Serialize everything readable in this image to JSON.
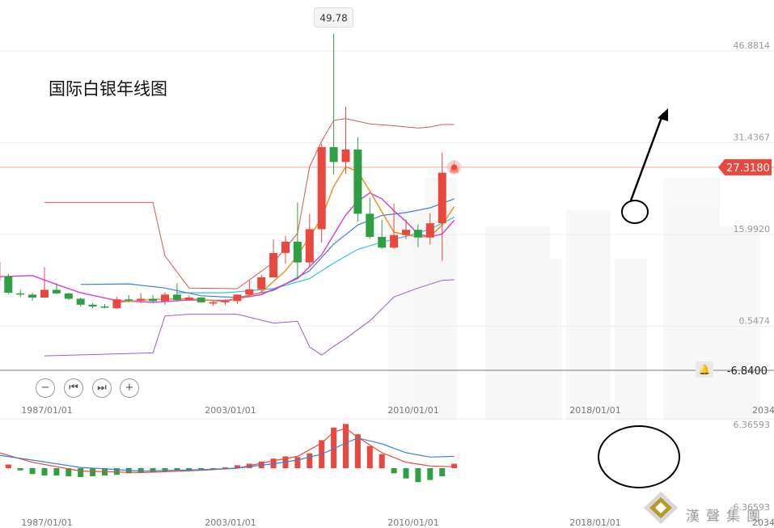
{
  "title": "国际白银年线图",
  "controls": {
    "zoom_out": "−",
    "prev": "⏮",
    "next": "⏭",
    "zoom_in": "+",
    "bell_icon": "bell-icon"
  },
  "brand": {
    "text": "漢聲集團",
    "color": "#8a8a8a"
  },
  "colors": {
    "up": "#e8483e",
    "down": "#2ea043",
    "ma_fast": "#f08a1c",
    "ma_mid": "#d63ad6",
    "ma_slow": "#3b82d6",
    "ma_long": "#30c7d6",
    "band_upper": "#d9584a",
    "band_lower": "#9b59d6",
    "macd_dif": "#e8483e",
    "macd_dea": "#3b82d6",
    "price_tag_bg": "#e8483e",
    "annotation": "#000000"
  },
  "chart_data": {
    "type": "candlestick",
    "price_axis": {
      "ticks": [
        "46.8814",
        "31.4367",
        "15.9920",
        "0.5474",
        "-6.8400"
      ],
      "ylim": [
        -6.84,
        50.5
      ]
    },
    "x_axis": {
      "tick_labels": [
        "1987/01/01",
        "2003/01/01",
        "2010/01/01",
        "2018/01/01",
        "2034"
      ]
    },
    "current_price": "27.3180",
    "max_label": "49.78",
    "candles": [
      {
        "year": 1983,
        "o": 8.2,
        "h": 14.8,
        "l": 8.0,
        "c": 11.4
      },
      {
        "year": 1984,
        "o": 9.0,
        "h": 9.4,
        "l": 6.0,
        "c": 6.2
      },
      {
        "year": 1985,
        "o": 6.1,
        "h": 6.7,
        "l": 5.5,
        "c": 5.9
      },
      {
        "year": 1986,
        "o": 5.9,
        "h": 6.2,
        "l": 4.9,
        "c": 5.4
      },
      {
        "year": 1987,
        "o": 5.4,
        "h": 10.5,
        "l": 5.3,
        "c": 6.7
      },
      {
        "year": 1988,
        "o": 6.7,
        "h": 7.8,
        "l": 6.0,
        "c": 6.1
      },
      {
        "year": 1989,
        "o": 6.1,
        "h": 6.2,
        "l": 5.0,
        "c": 5.2
      },
      {
        "year": 1990,
        "o": 5.2,
        "h": 5.4,
        "l": 3.9,
        "c": 4.2
      },
      {
        "year": 1991,
        "o": 4.2,
        "h": 4.5,
        "l": 3.6,
        "c": 3.9
      },
      {
        "year": 1992,
        "o": 3.9,
        "h": 4.3,
        "l": 3.6,
        "c": 3.7
      },
      {
        "year": 1993,
        "o": 3.6,
        "h": 5.5,
        "l": 3.5,
        "c": 5.1
      },
      {
        "year": 1994,
        "o": 5.1,
        "h": 5.8,
        "l": 4.6,
        "c": 4.9
      },
      {
        "year": 1995,
        "o": 4.9,
        "h": 6.1,
        "l": 4.4,
        "c": 5.2
      },
      {
        "year": 1996,
        "o": 5.2,
        "h": 5.8,
        "l": 4.6,
        "c": 4.8
      },
      {
        "year": 1997,
        "o": 4.8,
        "h": 6.3,
        "l": 4.2,
        "c": 5.9
      },
      {
        "year": 1998,
        "o": 5.9,
        "h": 7.8,
        "l": 4.7,
        "c": 5.0
      },
      {
        "year": 1999,
        "o": 5.0,
        "h": 5.8,
        "l": 4.9,
        "c": 5.4
      },
      {
        "year": 2000,
        "o": 5.4,
        "h": 5.5,
        "l": 4.6,
        "c": 4.6
      },
      {
        "year": 2001,
        "o": 4.6,
        "h": 4.8,
        "l": 4.0,
        "c": 4.6
      },
      {
        "year": 2002,
        "o": 4.6,
        "h": 5.1,
        "l": 4.2,
        "c": 4.8
      },
      {
        "year": 2003,
        "o": 4.8,
        "h": 5.9,
        "l": 4.3,
        "c": 5.9
      },
      {
        "year": 2004,
        "o": 5.9,
        "h": 8.3,
        "l": 5.5,
        "c": 6.8
      },
      {
        "year": 2005,
        "o": 6.8,
        "h": 9.2,
        "l": 6.4,
        "c": 8.8
      },
      {
        "year": 2006,
        "o": 8.8,
        "h": 15.2,
        "l": 8.8,
        "c": 12.9
      },
      {
        "year": 2007,
        "o": 12.9,
        "h": 15.8,
        "l": 11.1,
        "c": 14.8
      },
      {
        "year": 2008,
        "o": 14.8,
        "h": 21.4,
        "l": 8.5,
        "c": 11.3
      },
      {
        "year": 2009,
        "o": 11.3,
        "h": 19.5,
        "l": 10.5,
        "c": 16.9
      },
      {
        "year": 2010,
        "o": 16.9,
        "h": 31.3,
        "l": 14.6,
        "c": 30.7
      },
      {
        "year": 2011,
        "o": 30.7,
        "h": 49.78,
        "l": 26.1,
        "c": 28.2
      },
      {
        "year": 2012,
        "o": 28.2,
        "h": 37.5,
        "l": 26.2,
        "c": 30.3
      },
      {
        "year": 2013,
        "o": 30.3,
        "h": 32.4,
        "l": 18.2,
        "c": 19.5
      },
      {
        "year": 2014,
        "o": 19.5,
        "h": 22.2,
        "l": 15.3,
        "c": 15.6
      },
      {
        "year": 2015,
        "o": 15.6,
        "h": 18.5,
        "l": 13.6,
        "c": 13.8
      },
      {
        "year": 2016,
        "o": 13.8,
        "h": 21.2,
        "l": 13.6,
        "c": 15.9
      },
      {
        "year": 2017,
        "o": 15.9,
        "h": 18.6,
        "l": 15.2,
        "c": 16.8
      },
      {
        "year": 2018,
        "o": 16.8,
        "h": 17.7,
        "l": 13.9,
        "c": 15.5
      },
      {
        "year": 2019,
        "o": 15.5,
        "h": 19.6,
        "l": 14.3,
        "c": 17.9
      },
      {
        "year": 2020,
        "o": 17.9,
        "h": 29.8,
        "l": 11.6,
        "c": 26.4
      },
      {
        "year": 2021,
        "o": 26.4,
        "h": 28.4,
        "l": 26.2,
        "c": 27.318
      }
    ],
    "overlays": {
      "ma_fast": [
        [
          1993,
          4.6
        ],
        [
          1996,
          5.1
        ],
        [
          1999,
          5.2
        ],
        [
          2002,
          4.7
        ],
        [
          2005,
          6.3
        ],
        [
          2007,
          9.9
        ],
        [
          2008,
          12.5
        ],
        [
          2009,
          15.6
        ],
        [
          2010,
          18.8
        ],
        [
          2011,
          24.1
        ],
        [
          2012,
          27.4
        ],
        [
          2013,
          26.6
        ],
        [
          2014,
          23.3
        ],
        [
          2015,
          19.8
        ],
        [
          2016,
          16.4
        ],
        [
          2017,
          16.0
        ],
        [
          2018,
          15.6
        ],
        [
          2019,
          15.7
        ],
        [
          2020,
          17.6
        ],
        [
          2021,
          20.7
        ]
      ],
      "ma_mid": [
        [
          1983,
          8.9
        ],
        [
          1986,
          9.1
        ],
        [
          1988,
          7.6
        ],
        [
          1990,
          6.2
        ],
        [
          1993,
          4.9
        ],
        [
          1996,
          4.6
        ],
        [
          1999,
          5.0
        ],
        [
          2002,
          4.9
        ],
        [
          2005,
          5.9
        ],
        [
          2008,
          8.6
        ],
        [
          2010,
          12.6
        ],
        [
          2012,
          19.3
        ],
        [
          2013,
          21.6
        ],
        [
          2014,
          23.0
        ],
        [
          2015,
          22.0
        ],
        [
          2016,
          20.0
        ],
        [
          2017,
          18.2
        ],
        [
          2018,
          16.1
        ],
        [
          2019,
          15.6
        ],
        [
          2020,
          16.1
        ],
        [
          2021,
          18.4
        ]
      ],
      "ma_slow": [
        [
          1990,
          7.6
        ],
        [
          1994,
          7.7
        ],
        [
          1997,
          7.0
        ],
        [
          2000,
          5.7
        ],
        [
          2003,
          5.4
        ],
        [
          2006,
          6.6
        ],
        [
          2009,
          9.9
        ],
        [
          2011,
          14.4
        ],
        [
          2013,
          17.6
        ],
        [
          2015,
          19.2
        ],
        [
          2017,
          19.7
        ],
        [
          2019,
          20.5
        ],
        [
          2021,
          22.0
        ]
      ],
      "ma_long": [
        [
          1998,
          6.2
        ],
        [
          2002,
          6.2
        ],
        [
          2006,
          6.9
        ],
        [
          2009,
          8.6
        ],
        [
          2011,
          11.2
        ],
        [
          2013,
          13.5
        ],
        [
          2015,
          14.7
        ],
        [
          2017,
          15.7
        ],
        [
          2019,
          16.9
        ],
        [
          2021,
          18.9
        ]
      ],
      "band_upper": [
        [
          1987,
          21.4
        ],
        [
          1996,
          21.4
        ],
        [
          1997,
          12.4
        ],
        [
          1999,
          7.0
        ],
        [
          2003,
          6.9
        ],
        [
          2006,
          11.3
        ],
        [
          2008,
          16.2
        ],
        [
          2009,
          27.4
        ],
        [
          2010,
          31.7
        ],
        [
          2011,
          35.2
        ],
        [
          2012,
          35.5
        ],
        [
          2014,
          34.6
        ],
        [
          2016,
          34.3
        ],
        [
          2018,
          33.9
        ],
        [
          2019,
          34.1
        ],
        [
          2020,
          34.5
        ],
        [
          2021,
          34.5
        ]
      ],
      "band_lower": [
        [
          1987,
          -4.4
        ],
        [
          1996,
          -3.9
        ],
        [
          1997,
          2.3
        ],
        [
          1999,
          2.6
        ],
        [
          2003,
          2.6
        ],
        [
          2006,
          1.1
        ],
        [
          2008,
          1.4
        ],
        [
          2009,
          -2.9
        ],
        [
          2010,
          -4.3
        ],
        [
          2011,
          -2.8
        ],
        [
          2012,
          -1.5
        ],
        [
          2014,
          1.5
        ],
        [
          2016,
          5.5
        ],
        [
          2018,
          7.0
        ],
        [
          2020,
          8.3
        ],
        [
          2021,
          8.4
        ]
      ]
    },
    "macd": {
      "ticks": [
        "6.36593",
        "-6.36593"
      ],
      "ylim": [
        -6.36593,
        6.36593
      ],
      "hist": [
        [
          1983,
          -0.9
        ],
        [
          1984,
          0.5
        ],
        [
          1985,
          -0.3
        ],
        [
          1986,
          -0.8
        ],
        [
          1987,
          -1.0
        ],
        [
          1988,
          -1.0
        ],
        [
          1989,
          -1.1
        ],
        [
          1990,
          -1.2
        ],
        [
          1991,
          -1.1
        ],
        [
          1992,
          -1.0
        ],
        [
          1993,
          -0.9
        ],
        [
          1994,
          -0.7
        ],
        [
          1995,
          -0.6
        ],
        [
          1996,
          -0.6
        ],
        [
          1997,
          -0.5
        ],
        [
          1998,
          -0.3
        ],
        [
          1999,
          -0.4
        ],
        [
          2000,
          -0.2
        ],
        [
          2001,
          -0.1
        ],
        [
          2002,
          0.1
        ],
        [
          2003,
          0.4
        ],
        [
          2004,
          0.6
        ],
        [
          2005,
          0.9
        ],
        [
          2006,
          1.3
        ],
        [
          2007,
          1.6
        ],
        [
          2008,
          1.5
        ],
        [
          2009,
          2.0
        ],
        [
          2010,
          3.8
        ],
        [
          2011,
          5.5
        ],
        [
          2012,
          6.0
        ],
        [
          2013,
          4.6
        ],
        [
          2014,
          3.0
        ],
        [
          2015,
          1.9
        ],
        [
          2016,
          -0.7
        ],
        [
          2017,
          -1.4
        ],
        [
          2018,
          -1.9
        ],
        [
          2019,
          -1.6
        ],
        [
          2020,
          -1.1
        ],
        [
          2021,
          0.6
        ]
      ],
      "dif": [
        [
          1983,
          2.2
        ],
        [
          1986,
          0.8
        ],
        [
          1990,
          -0.4
        ],
        [
          1995,
          -0.6
        ],
        [
          2000,
          -0.3
        ],
        [
          2003,
          0.0
        ],
        [
          2006,
          1.0
        ],
        [
          2008,
          1.6
        ],
        [
          2010,
          3.4
        ],
        [
          2011,
          4.9
        ],
        [
          2012,
          5.4
        ],
        [
          2013,
          4.2
        ],
        [
          2015,
          2.1
        ],
        [
          2017,
          0.8
        ],
        [
          2019,
          0.3
        ],
        [
          2021,
          0.2
        ]
      ],
      "dea": [
        [
          1983,
          1.8
        ],
        [
          1986,
          1.1
        ],
        [
          1990,
          0.1
        ],
        [
          1995,
          -0.4
        ],
        [
          2000,
          -0.2
        ],
        [
          2003,
          0.0
        ],
        [
          2006,
          0.6
        ],
        [
          2008,
          1.1
        ],
        [
          2010,
          1.9
        ],
        [
          2012,
          3.4
        ],
        [
          2013,
          4.1
        ],
        [
          2015,
          3.3
        ],
        [
          2017,
          2.1
        ],
        [
          2019,
          1.5
        ],
        [
          2021,
          1.6
        ]
      ]
    }
  }
}
